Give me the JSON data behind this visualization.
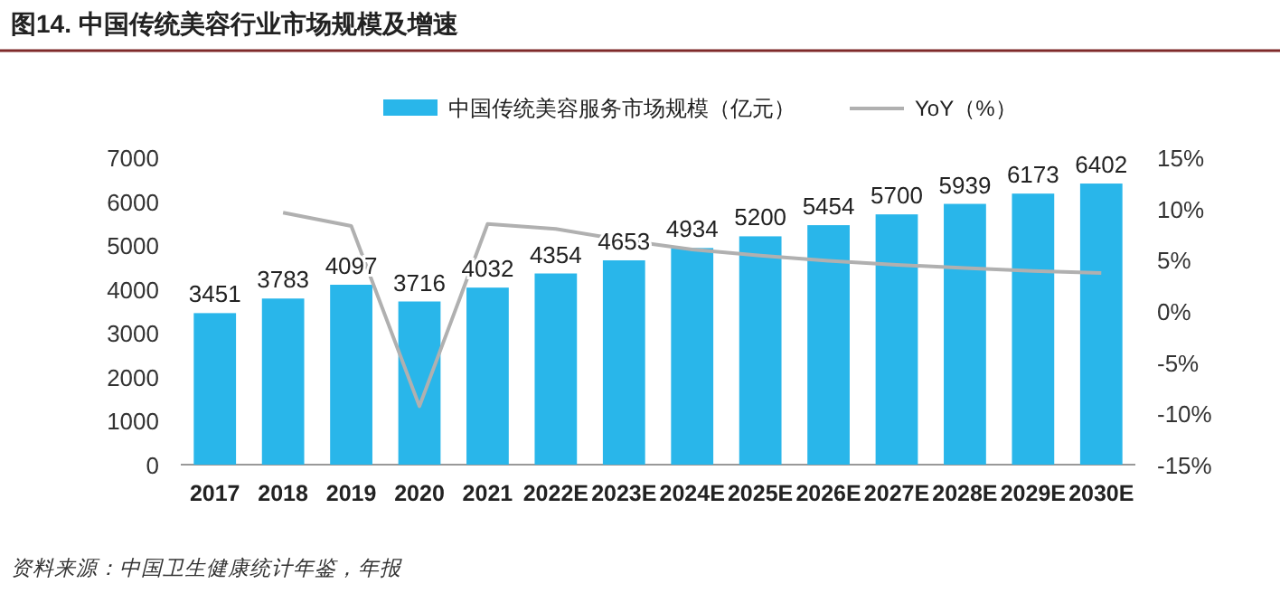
{
  "chart_data": {
    "type": "bar",
    "title": "图14. 中国传统美容行业市场规模及增速",
    "categories": [
      "2017",
      "2018",
      "2019",
      "2020",
      "2021",
      "2022E",
      "2023E",
      "2024E",
      "2025E",
      "2026E",
      "2027E",
      "2028E",
      "2029E",
      "2030E"
    ],
    "series": [
      {
        "name": "中国传统美容服务市场规模（亿元）",
        "color": "#29b6ea",
        "values": [
          3451,
          3783,
          4097,
          3716,
          4032,
          4354,
          4653,
          4934,
          5200,
          5454,
          5700,
          5939,
          6173,
          6402
        ],
        "value_labels": [
          "3451",
          "3783",
          "4097",
          "3716",
          "4032",
          "4354",
          "4653",
          "4934",
          "5200",
          "5454",
          "5700",
          "5939",
          "6173",
          "6402"
        ]
      },
      {
        "name": "YoY（%）",
        "type": "line",
        "axis": "y2",
        "color": "#b0b0b0",
        "values": [
          null,
          9.6,
          8.3,
          -9.3,
          8.5,
          8.0,
          6.9,
          6.0,
          5.4,
          4.9,
          4.5,
          4.2,
          3.9,
          3.7
        ]
      }
    ],
    "ylim": [
      0,
      7000
    ],
    "yticks": [
      0,
      1000,
      2000,
      3000,
      4000,
      5000,
      6000,
      7000
    ],
    "y2lim": [
      -15,
      15
    ],
    "y2ticks": [
      {
        "value": -15,
        "label": "-15%"
      },
      {
        "value": -10,
        "label": "-10%"
      },
      {
        "value": -5,
        "label": "-5%"
      },
      {
        "value": 0,
        "label": "0%"
      },
      {
        "value": 5,
        "label": "5%"
      },
      {
        "value": 10,
        "label": "10%"
      },
      {
        "value": 15,
        "label": "15%"
      }
    ],
    "legend": "top",
    "annotations": [
      "资料来源：中国卫生健康统计年鉴，年报"
    ]
  }
}
